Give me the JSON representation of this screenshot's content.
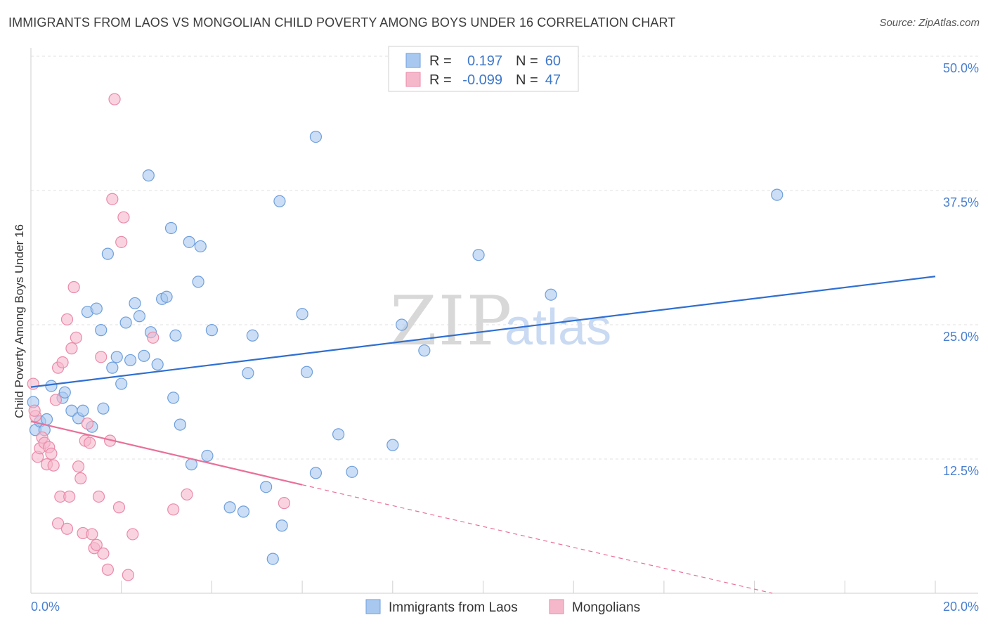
{
  "title": "IMMIGRANTS FROM LAOS VS MONGOLIAN CHILD POVERTY AMONG BOYS UNDER 16 CORRELATION CHART",
  "source": "Source: ZipAtlas.com",
  "watermark": {
    "part1": "ZIP",
    "part2": "atlas"
  },
  "legend": {
    "rows": [
      {
        "r_label": "R =",
        "r_value": "0.197",
        "n_label": "N =",
        "n_value": "60",
        "color": "#a9c8ef"
      },
      {
        "r_label": "R =",
        "r_value": "-0.099",
        "n_label": "N =",
        "n_value": "47",
        "color": "#f5b8cb"
      }
    ]
  },
  "chart_data": {
    "type": "scatter",
    "xlabel": "",
    "ylabel": "Child Poverty Among Boys Under 16",
    "xlim": [
      0,
      20
    ],
    "ylim": [
      0,
      50
    ],
    "x_tick_labels": [
      "0.0%",
      "20.0%"
    ],
    "y_ticks": [
      12.5,
      25.0,
      37.5,
      50.0
    ],
    "y_tick_labels": [
      "12.5%",
      "25.0%",
      "37.5%",
      "50.0%"
    ],
    "grid": true,
    "series": [
      {
        "name": "Immigrants from Laos",
        "color": "#a9c8ef",
        "stroke": "#6e9fdc",
        "trend_color": "#2f6fd1",
        "trend": {
          "x": [
            0,
            20
          ],
          "y": [
            19.2,
            29.5
          ],
          "dashed_to": null
        },
        "points": [
          [
            0.05,
            17.8
          ],
          [
            0.1,
            15.2
          ],
          [
            0.2,
            16.0
          ],
          [
            0.3,
            15.2
          ],
          [
            0.35,
            16.2
          ],
          [
            0.45,
            19.3
          ],
          [
            0.7,
            18.2
          ],
          [
            0.75,
            18.7
          ],
          [
            0.9,
            17.0
          ],
          [
            1.05,
            16.3
          ],
          [
            1.15,
            17.0
          ],
          [
            1.35,
            15.5
          ],
          [
            1.25,
            26.2
          ],
          [
            1.45,
            26.5
          ],
          [
            1.55,
            24.5
          ],
          [
            1.6,
            17.2
          ],
          [
            1.7,
            31.6
          ],
          [
            1.8,
            21.0
          ],
          [
            1.9,
            22.0
          ],
          [
            2.0,
            19.5
          ],
          [
            2.1,
            25.2
          ],
          [
            2.2,
            21.7
          ],
          [
            2.3,
            27.0
          ],
          [
            2.4,
            25.8
          ],
          [
            2.5,
            22.1
          ],
          [
            2.6,
            38.9
          ],
          [
            2.65,
            24.3
          ],
          [
            2.8,
            21.3
          ],
          [
            2.9,
            27.4
          ],
          [
            3.0,
            27.6
          ],
          [
            3.1,
            34.0
          ],
          [
            3.15,
            18.2
          ],
          [
            3.2,
            24.0
          ],
          [
            3.3,
            15.7
          ],
          [
            3.5,
            32.7
          ],
          [
            3.55,
            12.0
          ],
          [
            3.7,
            29.0
          ],
          [
            3.75,
            32.3
          ],
          [
            3.9,
            12.8
          ],
          [
            4.0,
            24.5
          ],
          [
            4.4,
            8.0
          ],
          [
            4.7,
            7.6
          ],
          [
            4.8,
            20.5
          ],
          [
            4.9,
            24.0
          ],
          [
            5.2,
            9.9
          ],
          [
            5.35,
            3.2
          ],
          [
            5.5,
            36.5
          ],
          [
            5.55,
            6.3
          ],
          [
            6.0,
            26.0
          ],
          [
            6.1,
            20.6
          ],
          [
            6.3,
            42.5
          ],
          [
            6.3,
            11.2
          ],
          [
            6.8,
            14.8
          ],
          [
            7.1,
            11.3
          ],
          [
            8.0,
            13.8
          ],
          [
            8.2,
            25.0
          ],
          [
            8.7,
            22.6
          ],
          [
            9.9,
            31.5
          ],
          [
            11.5,
            27.8
          ],
          [
            16.5,
            37.1
          ]
        ]
      },
      {
        "name": "Mongolians",
        "color": "#f5b8cb",
        "stroke": "#ea8aa8",
        "trend_color": "#e8709a",
        "trend": {
          "x": [
            0,
            6.0
          ],
          "y": [
            16.0,
            10.1
          ],
          "dashed_to": [
            20,
            -3.5
          ]
        },
        "points": [
          [
            0.05,
            19.5
          ],
          [
            0.1,
            16.5
          ],
          [
            0.15,
            12.7
          ],
          [
            0.2,
            13.5
          ],
          [
            0.25,
            14.5
          ],
          [
            0.3,
            14.0
          ],
          [
            0.35,
            12.0
          ],
          [
            0.4,
            13.6
          ],
          [
            0.45,
            13.0
          ],
          [
            0.5,
            11.9
          ],
          [
            0.55,
            18.0
          ],
          [
            0.6,
            21.0
          ],
          [
            0.6,
            6.5
          ],
          [
            0.65,
            9.0
          ],
          [
            0.7,
            21.5
          ],
          [
            0.8,
            25.5
          ],
          [
            0.8,
            6.0
          ],
          [
            0.85,
            9.0
          ],
          [
            0.9,
            22.8
          ],
          [
            0.95,
            28.5
          ],
          [
            1.0,
            23.8
          ],
          [
            1.05,
            11.8
          ],
          [
            1.1,
            10.7
          ],
          [
            1.15,
            5.6
          ],
          [
            1.2,
            14.2
          ],
          [
            1.25,
            15.8
          ],
          [
            1.3,
            14.0
          ],
          [
            1.35,
            5.5
          ],
          [
            1.4,
            4.2
          ],
          [
            1.45,
            4.5
          ],
          [
            1.5,
            9.0
          ],
          [
            1.55,
            22.0
          ],
          [
            1.6,
            3.7
          ],
          [
            1.7,
            2.2
          ],
          [
            1.75,
            14.2
          ],
          [
            1.8,
            36.7
          ],
          [
            1.85,
            46.0
          ],
          [
            1.95,
            8.0
          ],
          [
            2.0,
            32.7
          ],
          [
            2.05,
            35.0
          ],
          [
            2.15,
            1.7
          ],
          [
            2.25,
            5.5
          ],
          [
            2.7,
            23.8
          ],
          [
            3.15,
            7.8
          ],
          [
            3.45,
            9.2
          ],
          [
            5.6,
            8.4
          ],
          [
            0.08,
            17.0
          ]
        ]
      }
    ]
  },
  "bottom_legend": [
    {
      "label": "Immigrants from Laos",
      "color": "#a9c8ef"
    },
    {
      "label": "Mongolians",
      "color": "#f5b8cb"
    }
  ]
}
